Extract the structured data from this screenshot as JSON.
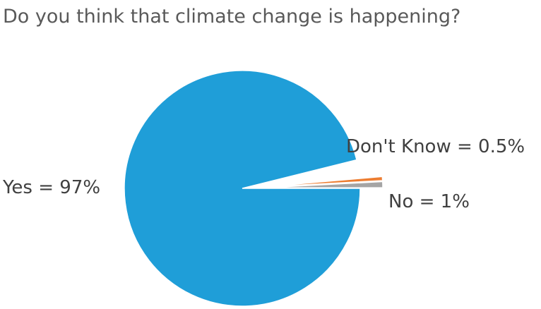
{
  "chart_data": {
    "type": "pie",
    "title": "Do you think that climate change is happening?",
    "slices": [
      {
        "name": "Yes",
        "value": 97,
        "color": "#1f9ed8",
        "label": "Yes = 97%",
        "exploded": false
      },
      {
        "name": "Don't Know",
        "value": 0.5,
        "color": "#ed7d31",
        "label": "Don't Know = 0.5%",
        "exploded": true
      },
      {
        "name": "No",
        "value": 1,
        "color": "#a5a5a5",
        "label": "No = 1%",
        "exploded": true
      }
    ]
  }
}
